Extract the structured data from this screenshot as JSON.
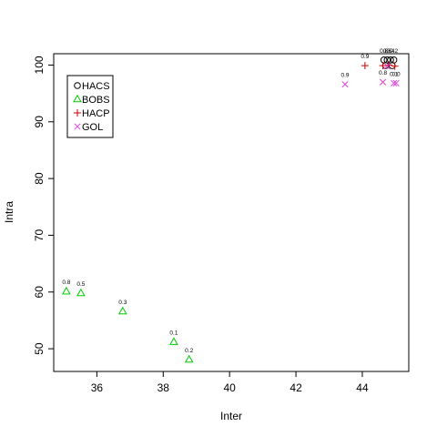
{
  "chart_data": {
    "type": "scatter",
    "xlabel": "Inter",
    "ylabel": "Intra",
    "xlim": [
      34.7,
      45.4
    ],
    "ylim": [
      46.0,
      102.0
    ],
    "xticks": [
      36,
      38,
      40,
      42,
      44
    ],
    "yticks": [
      50,
      60,
      70,
      80,
      90,
      100
    ],
    "grid": false,
    "legend_position": "top-left",
    "series": [
      {
        "name": "HACS",
        "marker": "circle",
        "color": "#000000",
        "points": [
          {
            "x": 44.65,
            "y": 100.9,
            "label": "0.8"
          },
          {
            "x": 44.75,
            "y": 100.9,
            "label": "0.6"
          },
          {
            "x": 44.85,
            "y": 100.9,
            "label": "0.4"
          },
          {
            "x": 44.95,
            "y": 100.9,
            "label": "0.2"
          },
          {
            "x": 44.7,
            "y": 99.9,
            "label": ""
          },
          {
            "x": 44.9,
            "y": 99.9,
            "label": ""
          }
        ]
      },
      {
        "name": "BOBS",
        "marker": "triangle",
        "color": "#00cc00",
        "points": [
          {
            "x": 35.08,
            "y": 60.1,
            "label": "0.8"
          },
          {
            "x": 35.52,
            "y": 59.8,
            "label": "0.5"
          },
          {
            "x": 36.78,
            "y": 56.6,
            "label": "0.3"
          },
          {
            "x": 38.32,
            "y": 51.2,
            "label": "0.1"
          },
          {
            "x": 38.78,
            "y": 48.1,
            "label": "0.2"
          }
        ]
      },
      {
        "name": "HACP",
        "marker": "plus",
        "color": "#cc0000",
        "points": [
          {
            "x": 44.08,
            "y": 99.9,
            "label": "0.9"
          },
          {
            "x": 44.62,
            "y": 99.9,
            "label": ""
          },
          {
            "x": 44.8,
            "y": 100.0,
            "label": ""
          },
          {
            "x": 44.98,
            "y": 99.8,
            "label": ""
          }
        ]
      },
      {
        "name": "GOL",
        "marker": "x",
        "color": "#dd44dd",
        "points": [
          {
            "x": 43.48,
            "y": 96.6,
            "label": "0.9"
          },
          {
            "x": 44.62,
            "y": 97.0,
            "label": "0.8"
          },
          {
            "x": 44.95,
            "y": 96.8,
            "label": "0.1"
          },
          {
            "x": 45.02,
            "y": 96.8,
            "label": "0.0"
          },
          {
            "x": 44.75,
            "y": 99.8,
            "label": ""
          }
        ]
      }
    ]
  }
}
